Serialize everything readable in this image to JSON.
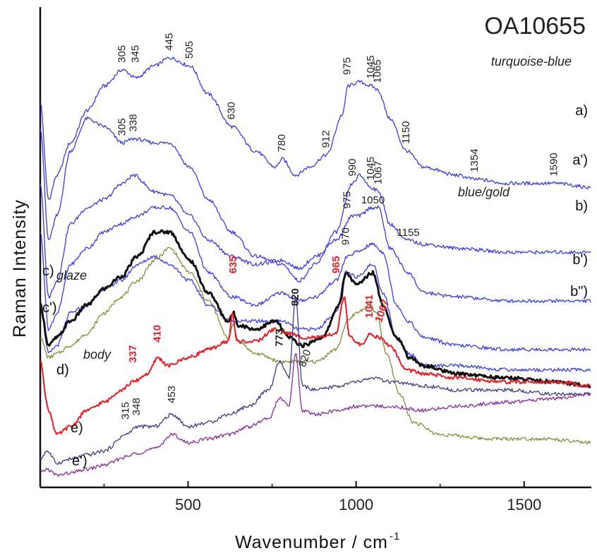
{
  "chart_data": {
    "type": "line",
    "title": "OA10655",
    "xlabel": "Wavenumber / cm",
    "xlabel_superscript": "-1",
    "ylabel": "Raman Intensity",
    "xlim": [
      60,
      1700
    ],
    "x_ticks": [
      500,
      1000,
      1500
    ],
    "x_minor_ticks": [
      250,
      750,
      1250
    ],
    "grid": false,
    "y_tick_labels": false,
    "stacked_offset": true,
    "series": [
      {
        "name": "a)",
        "note": "turquoise-blue",
        "color": "#3a3af0",
        "width": 1.3,
        "x": [
          60,
          85,
          110,
          150,
          200,
          250,
          305,
          345,
          400,
          445,
          505,
          560,
          630,
          700,
          760,
          780,
          820,
          860,
          912,
          960,
          975,
          1010,
          1045,
          1065,
          1100,
          1150,
          1200,
          1300,
          1354,
          1450,
          1590,
          1700
        ],
        "y": [
          92,
          68,
          74,
          82,
          90,
          96,
          100,
          98,
          101,
          103,
          101,
          94,
          86,
          80,
          76,
          78,
          74,
          76,
          79,
          89,
          96,
          97,
          96,
          95,
          88,
          80,
          76,
          74,
          73,
          72,
          72,
          71
        ]
      },
      {
        "name": "a')",
        "color": "#3a3af0",
        "width": 1.3,
        "x": [
          60,
          85,
          110,
          150,
          200,
          250,
          305,
          338,
          400,
          445,
          505,
          560,
          630,
          700,
          780,
          830,
          880,
          940,
          990,
          1010,
          1045,
          1067,
          1100,
          1150,
          1200,
          1300,
          1450,
          1600,
          1700
        ],
        "y": [
          86,
          58,
          64,
          80,
          88,
          86,
          82,
          83,
          82,
          82,
          76,
          68,
          60,
          54,
          52,
          48,
          52,
          60,
          72,
          74,
          71,
          70,
          62,
          58,
          57,
          56,
          55,
          55,
          55
        ]
      },
      {
        "name": "b)",
        "note": "blue/gold",
        "color": "#3a3af0",
        "width": 1.3,
        "x": [
          60,
          85,
          110,
          150,
          200,
          250,
          305,
          338,
          400,
          445,
          505,
          560,
          630,
          700,
          780,
          830,
          880,
          940,
          990,
          1010,
          1045,
          1067,
          1100,
          1155,
          1200,
          1300,
          1450,
          1600,
          1700
        ],
        "y": [
          72,
          44,
          48,
          62,
          66,
          68,
          72,
          74,
          70,
          69,
          64,
          58,
          54,
          52,
          53,
          51,
          54,
          58,
          64,
          64,
          66,
          66,
          56,
          50,
          45,
          44,
          43,
          43,
          43
        ]
      },
      {
        "name": "b')",
        "color": "#3a3af0",
        "width": 1.3,
        "x": [
          60,
          85,
          110,
          150,
          200,
          250,
          300,
          350,
          400,
          445,
          505,
          560,
          630,
          700,
          780,
          830,
          880,
          940,
          975,
          1000,
          1050,
          1080,
          1120,
          1155,
          1200,
          1300,
          1450,
          1600,
          1700
        ],
        "y": [
          60,
          36,
          40,
          52,
          56,
          60,
          62,
          64,
          66,
          66,
          60,
          50,
          44,
          42,
          45,
          43,
          44,
          48,
          54,
          55,
          57,
          55,
          42,
          38,
          34,
          32,
          31,
          31,
          31
        ]
      },
      {
        "name": "b\")",
        "color": "#3a3af0",
        "width": 1.3,
        "x": [
          60,
          85,
          110,
          150,
          200,
          250,
          300,
          350,
          400,
          445,
          505,
          560,
          630,
          700,
          780,
          830,
          880,
          940,
          970,
          1000,
          1050,
          1080,
          1120,
          1160,
          1200,
          1300,
          1450,
          1600,
          1700
        ],
        "y": [
          42,
          30,
          32,
          40,
          42,
          46,
          48,
          52,
          54,
          52,
          48,
          42,
          38,
          38,
          38,
          36,
          36,
          40,
          50,
          49,
          52,
          45,
          34,
          30,
          27,
          27,
          26,
          26,
          26
        ]
      },
      {
        "name": "c)",
        "note": "glaze",
        "color": "#111111",
        "width": 3,
        "x": [
          60,
          85,
          110,
          150,
          200,
          250,
          300,
          350,
          400,
          445,
          505,
          560,
          620,
          635,
          650,
          700,
          760,
          800,
          840,
          900,
          950,
          970,
          1000,
          1050,
          1080,
          1120,
          1160,
          1200,
          1300,
          1450,
          1600,
          1700
        ],
        "y": [
          42,
          32,
          34,
          38,
          42,
          46,
          49,
          54,
          60,
          60,
          53,
          45,
          38,
          40,
          37,
          36,
          38,
          34,
          32,
          34,
          42,
          50,
          47,
          50,
          42,
          34,
          29,
          27,
          25,
          24,
          23,
          22
        ]
      },
      {
        "name": "c')",
        "color": "#8a8a3a",
        "width": 1.3,
        "x": [
          60,
          85,
          110,
          150,
          200,
          250,
          300,
          350,
          400,
          445,
          505,
          560,
          620,
          635,
          650,
          700,
          780,
          830,
          880,
          940,
          975,
          1000,
          1040,
          1060,
          1090,
          1130,
          1170,
          1250,
          1400,
          1550,
          1700
        ],
        "y": [
          34,
          29,
          30,
          32,
          35,
          40,
          44,
          48,
          53,
          56,
          50,
          43,
          34,
          37,
          33,
          30,
          28,
          28,
          28,
          31,
          38,
          40,
          42,
          40,
          30,
          20,
          13,
          10,
          9,
          9,
          8
        ]
      },
      {
        "name": "d)",
        "note": "body",
        "color": "#ee1c24",
        "width": 2,
        "x": [
          60,
          85,
          110,
          150,
          200,
          250,
          300,
          337,
          380,
          410,
          440,
          500,
          560,
          620,
          632,
          645,
          700,
          760,
          800,
          840,
          900,
          940,
          965,
          980,
          1020,
          1041,
          1067,
          1100,
          1150,
          1200,
          1300,
          1450,
          1600,
          1700
        ],
        "y": [
          28,
          16,
          10,
          12,
          16,
          18,
          21,
          23,
          25,
          29,
          27,
          29,
          31,
          33,
          40,
          33,
          33,
          36,
          35,
          34,
          34,
          35,
          44,
          34,
          32,
          35,
          34,
          32,
          26,
          25,
          24,
          23,
          23,
          22
        ]
      },
      {
        "name": "e)",
        "color": "#3a3a8e",
        "width": 1.3,
        "x": [
          60,
          80,
          110,
          150,
          200,
          250,
          315,
          348,
          400,
          453,
          500,
          560,
          620,
          680,
          740,
          773,
          800,
          820,
          840,
          880,
          950,
          1000,
          1050,
          1100,
          1200,
          1300,
          1450,
          1600,
          1700
        ],
        "y": [
          4,
          6,
          3,
          4,
          5,
          6,
          10,
          12,
          12,
          15,
          12,
          13,
          15,
          17,
          21,
          28,
          24,
          44,
          22,
          21,
          22,
          23,
          24,
          23,
          22,
          21,
          21,
          20,
          20
        ]
      },
      {
        "name": "e')",
        "color": "#8a2a9e",
        "width": 1.3,
        "x": [
          60,
          80,
          110,
          150,
          200,
          250,
          315,
          348,
          400,
          453,
          500,
          560,
          620,
          680,
          740,
          773,
          800,
          820,
          840,
          880,
          950,
          1000,
          1050,
          1100,
          1200,
          1300,
          1450,
          1600,
          1700
        ],
        "y": [
          0.5,
          1.5,
          0,
          0.5,
          1.5,
          2.5,
          4.5,
          5.5,
          6.5,
          10,
          8,
          9,
          10,
          12,
          14,
          19,
          17,
          30,
          16,
          15,
          16,
          17,
          17,
          17,
          16,
          17,
          18,
          19,
          20
        ]
      }
    ],
    "annotations": [
      {
        "text": "305",
        "x": 305,
        "anchor_y": 100,
        "rotate": -90,
        "style": "normal"
      },
      {
        "text": "345",
        "x": 345,
        "anchor_y": 100,
        "rotate": -90,
        "style": "normal"
      },
      {
        "text": "445",
        "x": 445,
        "anchor_y": 103,
        "rotate": -90,
        "style": "normal"
      },
      {
        "text": "505",
        "x": 505,
        "anchor_y": 101,
        "rotate": -90,
        "style": "normal"
      },
      {
        "text": "630",
        "x": 630,
        "anchor_y": 86,
        "rotate": -90,
        "style": "normal"
      },
      {
        "text": "780",
        "x": 780,
        "anchor_y": 78,
        "rotate": -90,
        "style": "normal"
      },
      {
        "text": "912",
        "x": 912,
        "anchor_y": 79,
        "rotate": -90,
        "style": "normal"
      },
      {
        "text": "975",
        "x": 975,
        "anchor_y": 97,
        "rotate": -90,
        "style": "normal"
      },
      {
        "text": "1045",
        "x": 1045,
        "anchor_y": 96,
        "rotate": -90,
        "style": "normal"
      },
      {
        "text": "1065",
        "x": 1065,
        "anchor_y": 95,
        "rotate": -90,
        "style": "normal"
      },
      {
        "text": "1150",
        "x": 1150,
        "anchor_y": 80,
        "rotate": -90,
        "style": "normal"
      },
      {
        "text": "1354",
        "x": 1354,
        "anchor_y": 73,
        "rotate": -90,
        "style": "normal"
      },
      {
        "text": "1590",
        "x": 1590,
        "anchor_y": 72,
        "rotate": -90,
        "style": "normal"
      },
      {
        "text": "305",
        "x": 305,
        "anchor_y": 82,
        "rotate": -90,
        "style": "normal"
      },
      {
        "text": "338",
        "x": 338,
        "anchor_y": 83,
        "rotate": -90,
        "style": "normal"
      },
      {
        "text": "990",
        "x": 990,
        "anchor_y": 72,
        "rotate": -90,
        "style": "normal"
      },
      {
        "text": "1045",
        "x": 1045,
        "anchor_y": 71,
        "rotate": -90,
        "style": "normal"
      },
      {
        "text": "1067",
        "x": 1067,
        "anchor_y": 70,
        "rotate": -90,
        "style": "normal"
      },
      {
        "text": "975",
        "x": 975,
        "anchor_y": 64,
        "rotate": -90,
        "style": "normal"
      },
      {
        "text": "1050",
        "x": 1050,
        "anchor_y": 66,
        "rotate": 0,
        "style": "normal"
      },
      {
        "text": "1155",
        "x": 1155,
        "anchor_y": 58,
        "rotate": 0,
        "style": "normal"
      },
      {
        "text": "970",
        "x": 970,
        "anchor_y": 55,
        "rotate": -90,
        "style": "normal"
      },
      {
        "text": "635",
        "x": 635,
        "anchor_y": 48,
        "rotate": -90,
        "style": "red"
      },
      {
        "text": "965",
        "x": 942,
        "anchor_y": 48,
        "rotate": -90,
        "style": "red"
      },
      {
        "text": "820",
        "x": 820,
        "anchor_y": 40,
        "rotate": -90,
        "style": "bold"
      },
      {
        "text": "1041",
        "x": 1041,
        "anchor_y": 37,
        "rotate": -90,
        "style": "red"
      },
      {
        "text": "1067",
        "x": 1067,
        "anchor_y": 36,
        "rotate": -70,
        "style": "red"
      },
      {
        "text": "337",
        "x": 337,
        "anchor_y": 26,
        "rotate": -90,
        "style": "red"
      },
      {
        "text": "410",
        "x": 410,
        "anchor_y": 31,
        "rotate": -90,
        "style": "red"
      },
      {
        "text": "820",
        "x": 840,
        "anchor_y": 25,
        "rotate": -70,
        "style": "normal"
      },
      {
        "text": "773",
        "x": 773,
        "anchor_y": 30,
        "rotate": -90,
        "style": "bold"
      },
      {
        "text": "315",
        "x": 315,
        "anchor_y": 12,
        "rotate": -90,
        "style": "normal"
      },
      {
        "text": "348",
        "x": 348,
        "anchor_y": 13,
        "rotate": -90,
        "style": "normal"
      },
      {
        "text": "453",
        "x": 453,
        "anchor_y": 16,
        "rotate": -90,
        "style": "normal"
      }
    ]
  }
}
